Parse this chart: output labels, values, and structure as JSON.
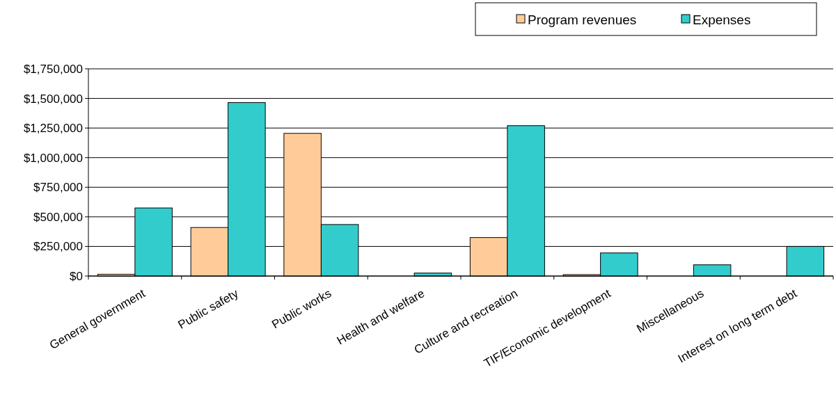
{
  "chart_data": {
    "type": "bar",
    "categories": [
      "General government",
      "Public safety",
      "Public works",
      "Health and welfare",
      "Culture and recreation",
      "TIF/Economic development",
      "Miscellaneous",
      "Interest on long term debt"
    ],
    "series": [
      {
        "name": "Program revenues",
        "color": "#ffcc99",
        "values": [
          15000,
          410000,
          1205000,
          0,
          325000,
          12000,
          0,
          0
        ]
      },
      {
        "name": "Expenses",
        "color": "#33cccc",
        "values": [
          575000,
          1465000,
          435000,
          25000,
          1270000,
          195000,
          95000,
          250000
        ]
      }
    ],
    "ylim": [
      0,
      1750000
    ],
    "yticks": [
      {
        "value": 0,
        "label": "$0"
      },
      {
        "value": 250000,
        "label": "$250,000"
      },
      {
        "value": 500000,
        "label": "$500,000"
      },
      {
        "value": 750000,
        "label": "$750,000"
      },
      {
        "value": 1000000,
        "label": "$1,000,000"
      },
      {
        "value": 1250000,
        "label": "$1,250,000"
      },
      {
        "value": 1500000,
        "label": "$1,500,000"
      },
      {
        "value": 1750000,
        "label": "$1,750,000"
      }
    ],
    "grid": "y",
    "legend": "top right"
  }
}
